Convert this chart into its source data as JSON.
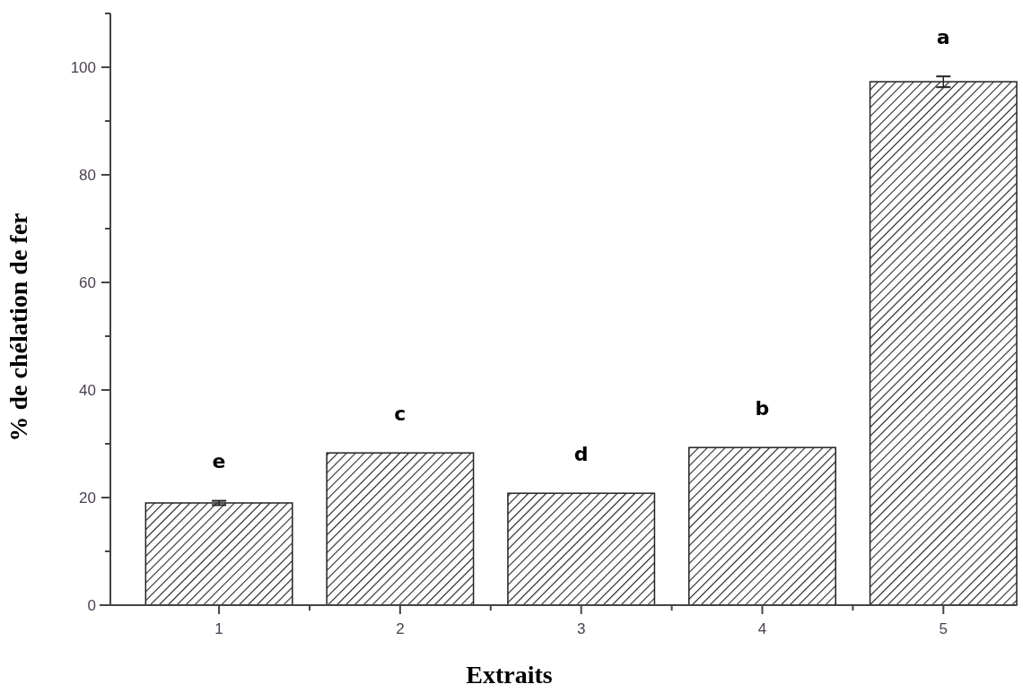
{
  "chart_data": {
    "type": "bar",
    "xlabel": "Extraits",
    "ylabel": "% de chélation de fer",
    "categories": [
      "1",
      "2",
      "3",
      "4",
      "5"
    ],
    "values": [
      19,
      28.3,
      20.8,
      29.3,
      97.3
    ],
    "errors": [
      0.4,
      null,
      null,
      null,
      1
    ],
    "color": "#222222",
    "ylim": [
      0,
      110
    ],
    "yticks": [
      0,
      20,
      40,
      60,
      80,
      100
    ],
    "annotations": [
      "e",
      "c",
      "d",
      "b",
      "a"
    ]
  }
}
